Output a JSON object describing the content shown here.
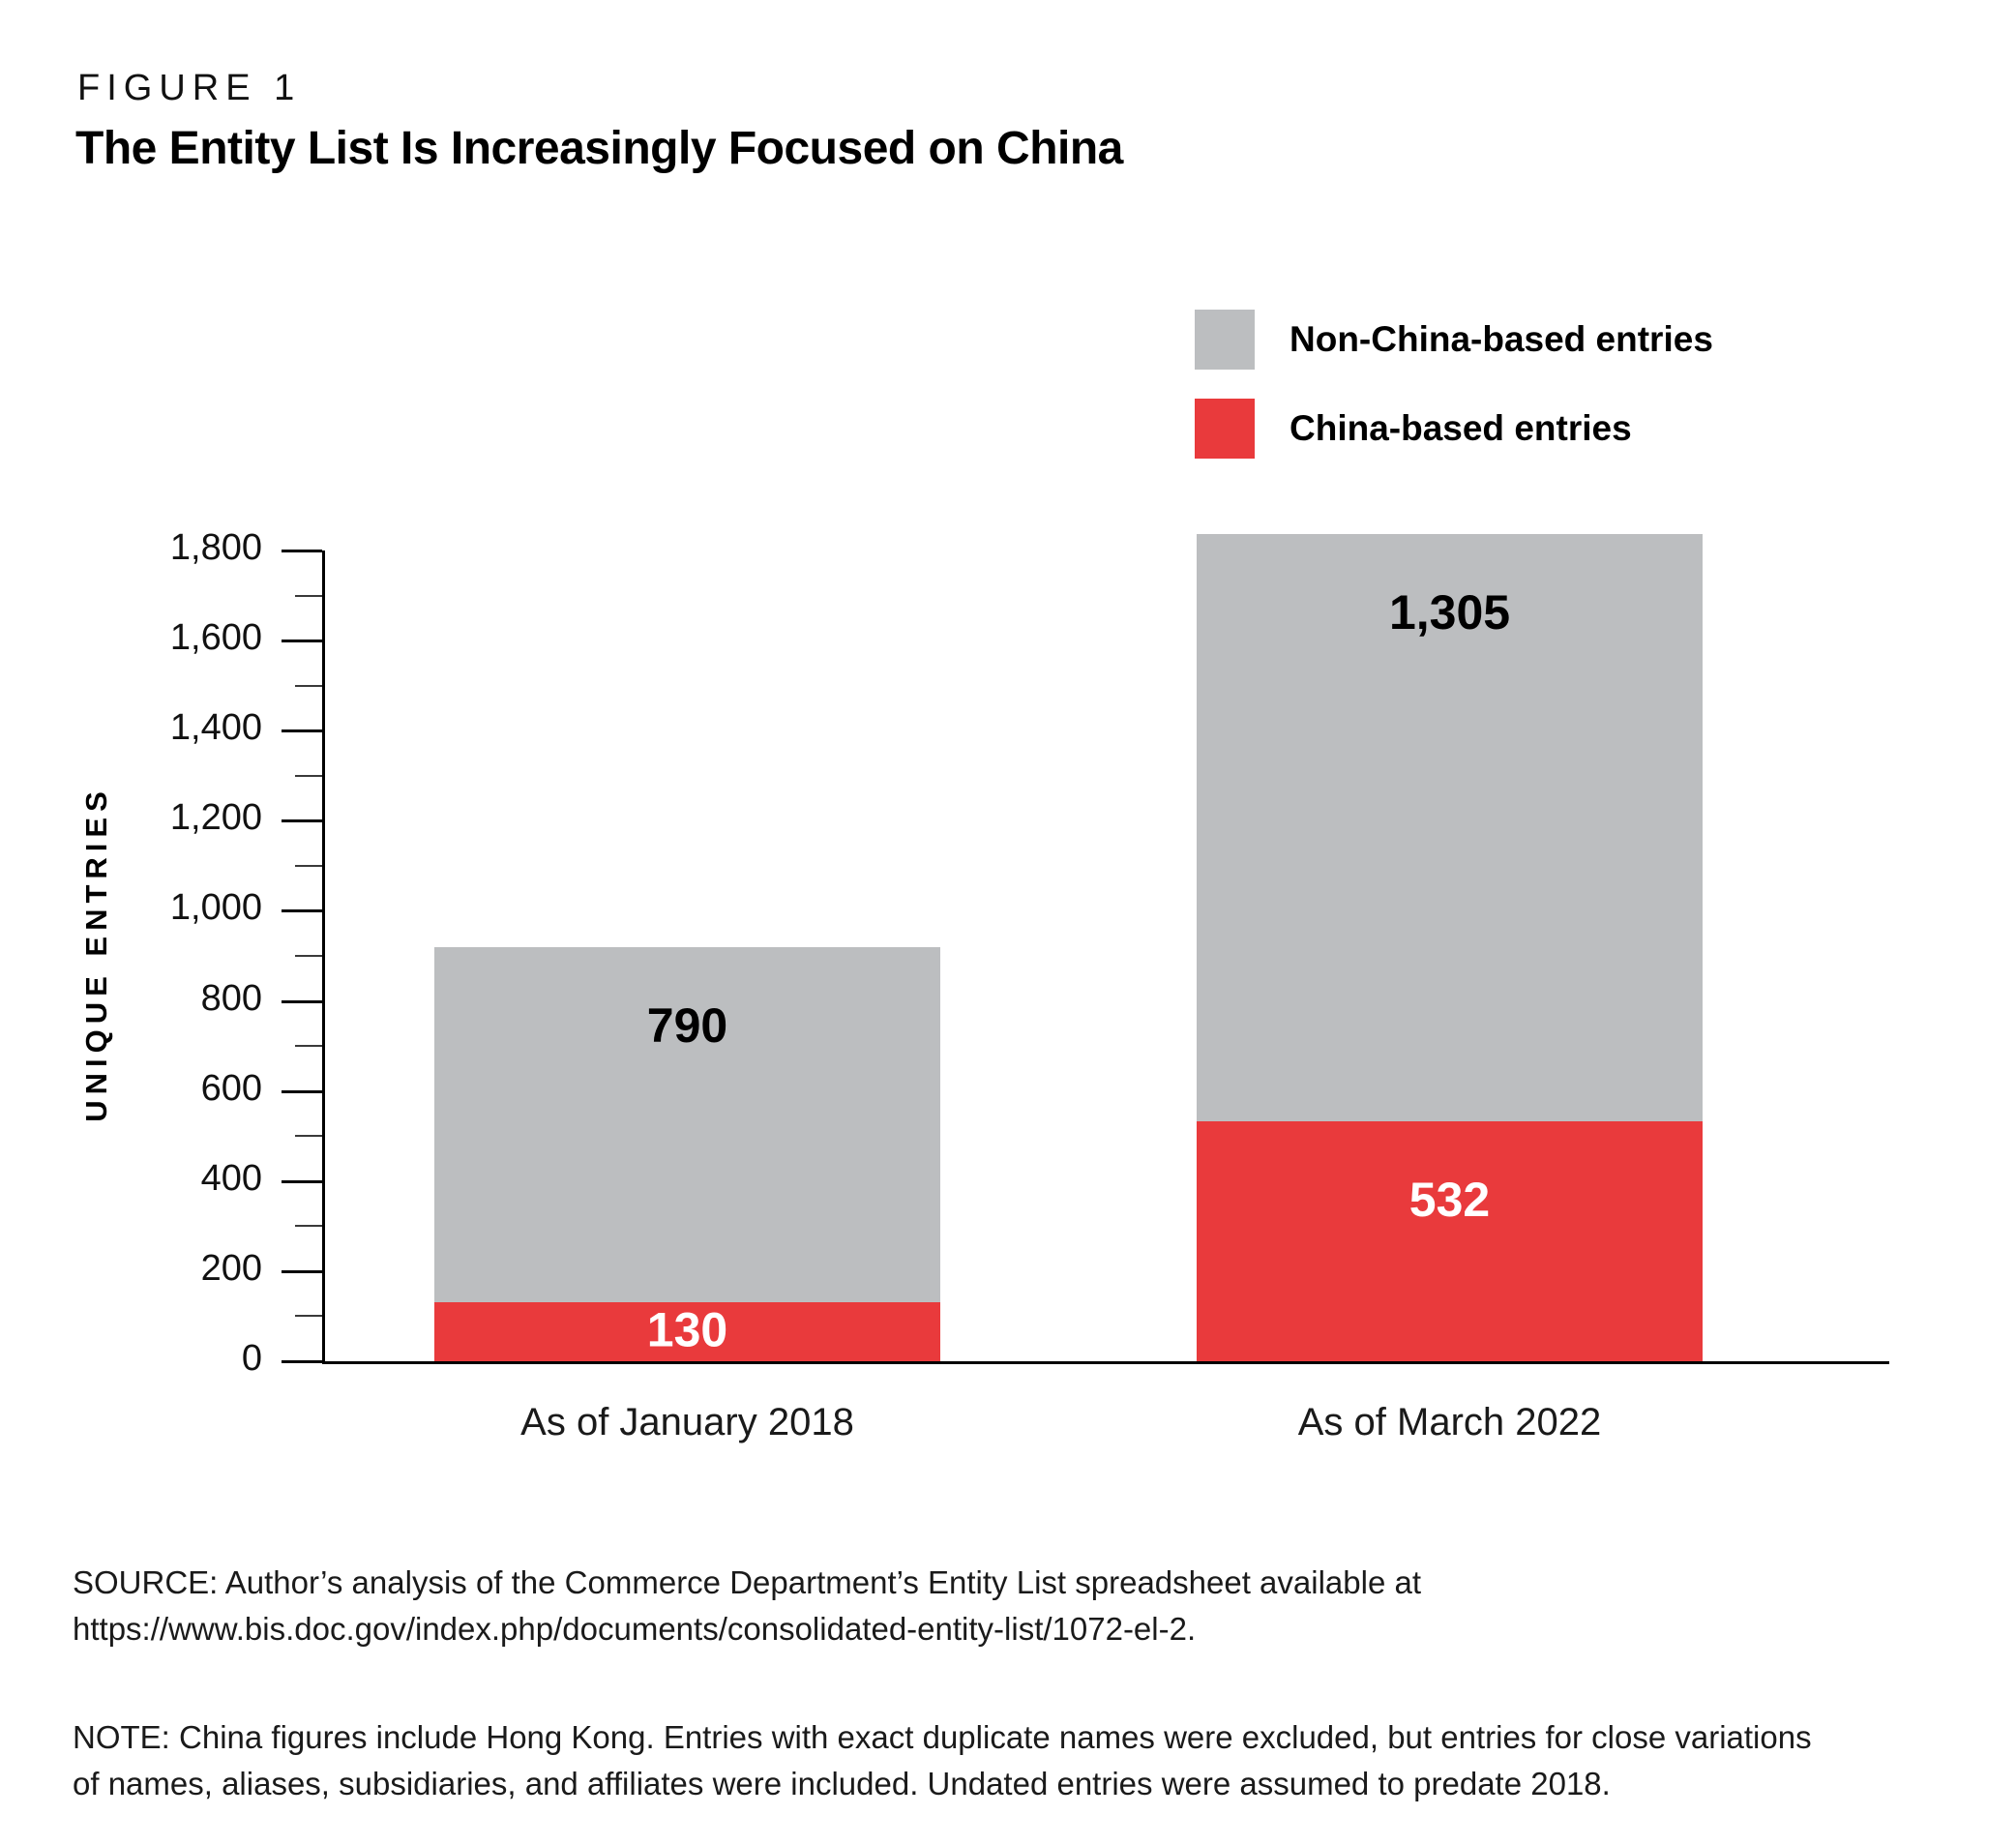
{
  "figure_label": "FIGURE 1",
  "title": "The Entity List Is Increasingly Focused on China",
  "legend": [
    {
      "label": "Non-China-based entries",
      "color": "#bcbec0"
    },
    {
      "label": "China-based entries",
      "color": "#e93a3c"
    }
  ],
  "chart_data": {
    "type": "bar",
    "stacked": true,
    "title": "The Entity List Is Increasingly Focused on China",
    "categories": [
      "As of January 2018",
      "As of March 2022"
    ],
    "series": [
      {
        "name": "China-based entries",
        "color": "#e93a3c",
        "values": [
          130,
          532
        ],
        "value_labels": [
          "130",
          "532"
        ],
        "label_color": "#ffffff"
      },
      {
        "name": "Non-China-based entries",
        "color": "#bcbec0",
        "values": [
          790,
          1305
        ],
        "value_labels": [
          "790",
          "1,305"
        ],
        "label_color": "#000000"
      }
    ],
    "xlabel": "",
    "ylabel": "UNIQUE ENTRIES",
    "ylim": [
      0,
      1800
    ],
    "ytick_major_step": 200,
    "ytick_minor_step": 100,
    "ytick_labels": [
      "0",
      "200",
      "400",
      "600",
      "800",
      "1,000",
      "1,200",
      "1,400",
      "1,600",
      "1,800"
    ],
    "grid": false,
    "legend_position": "top-right"
  },
  "source_lines": [
    "SOURCE: Author’s analysis of the Commerce Department’s Entity List spreadsheet available at",
    "https://www.bis.doc.gov/index.php/documents/consolidated-entity-list/1072-el-2."
  ],
  "note_lines": [
    "NOTE: China figures include Hong Kong. Entries with exact duplicate names were excluded, but entries for close variations",
    "of names, aliases, subsidiaries, and affiliates were included. Undated entries were assumed to predate 2018."
  ]
}
